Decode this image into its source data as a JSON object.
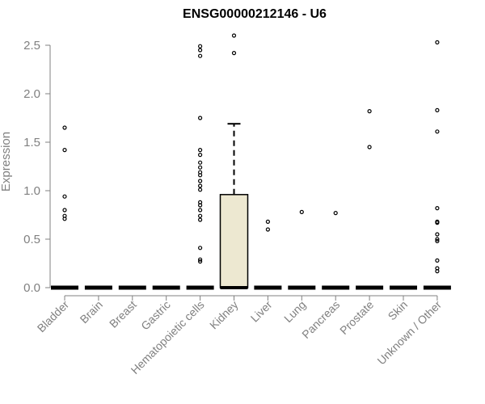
{
  "chart_data": {
    "type": "box",
    "title": "ENSG00000212146 - U6",
    "ylabel": "Expression",
    "xlabel": "",
    "ylim": [
      0,
      2.6
    ],
    "yticks": [
      "0.0",
      "0.5",
      "1.0",
      "1.5",
      "2.0",
      "2.5"
    ],
    "categories": [
      "Bladder",
      "Brain",
      "Breast",
      "Gastric",
      "Hematopoietic cells",
      "Kidney",
      "Liver",
      "Lung",
      "Pancreas",
      "Prostate",
      "Skin",
      "Unknown / Other"
    ],
    "box_fill": "#ede8d1",
    "boxes": [
      {
        "category": "Bladder",
        "min": 0,
        "q1": 0,
        "median": 0,
        "q3": 0,
        "max": 0,
        "outliers": [
          1.65,
          1.42,
          0.94,
          0.8,
          0.74,
          0.71
        ]
      },
      {
        "category": "Brain",
        "min": 0,
        "q1": 0,
        "median": 0,
        "q3": 0,
        "max": 0,
        "outliers": []
      },
      {
        "category": "Breast",
        "min": 0,
        "q1": 0,
        "median": 0,
        "q3": 0,
        "max": 0,
        "outliers": []
      },
      {
        "category": "Gastric",
        "min": 0,
        "q1": 0,
        "median": 0,
        "q3": 0,
        "max": 0,
        "outliers": []
      },
      {
        "category": "Hematopoietic cells",
        "min": 0,
        "q1": 0,
        "median": 0,
        "q3": 0,
        "max": 0,
        "outliers": [
          2.49,
          2.45,
          2.39,
          1.75,
          1.42,
          1.37,
          1.29,
          1.24,
          1.19,
          1.16,
          1.1,
          1.05,
          1.01,
          0.88,
          0.85,
          0.8,
          0.74,
          0.7,
          0.41,
          0.29,
          0.27
        ]
      },
      {
        "category": "Kidney",
        "min": 0,
        "q1": 0,
        "median": 0,
        "q3": 0.96,
        "max": 1.69,
        "outliers": [
          2.6,
          2.42
        ]
      },
      {
        "category": "Liver",
        "min": 0,
        "q1": 0,
        "median": 0,
        "q3": 0,
        "max": 0,
        "outliers": [
          0.68,
          0.6
        ]
      },
      {
        "category": "Lung",
        "min": 0,
        "q1": 0,
        "median": 0,
        "q3": 0,
        "max": 0,
        "outliers": [
          0.78
        ]
      },
      {
        "category": "Pancreas",
        "min": 0,
        "q1": 0,
        "median": 0,
        "q3": 0,
        "max": 0,
        "outliers": [
          0.77
        ]
      },
      {
        "category": "Prostate",
        "min": 0,
        "q1": 0,
        "median": 0,
        "q3": 0,
        "max": 0,
        "outliers": [
          1.82,
          1.45
        ]
      },
      {
        "category": "Skin",
        "min": 0,
        "q1": 0,
        "median": 0,
        "q3": 0,
        "max": 0,
        "outliers": []
      },
      {
        "category": "Unknown / Other",
        "min": 0,
        "q1": 0,
        "median": 0,
        "q3": 0,
        "max": 0,
        "outliers": [
          2.53,
          1.83,
          1.61,
          0.82,
          0.68,
          0.67,
          0.55,
          0.5,
          0.48,
          0.28,
          0.2,
          0.17
        ]
      }
    ]
  }
}
